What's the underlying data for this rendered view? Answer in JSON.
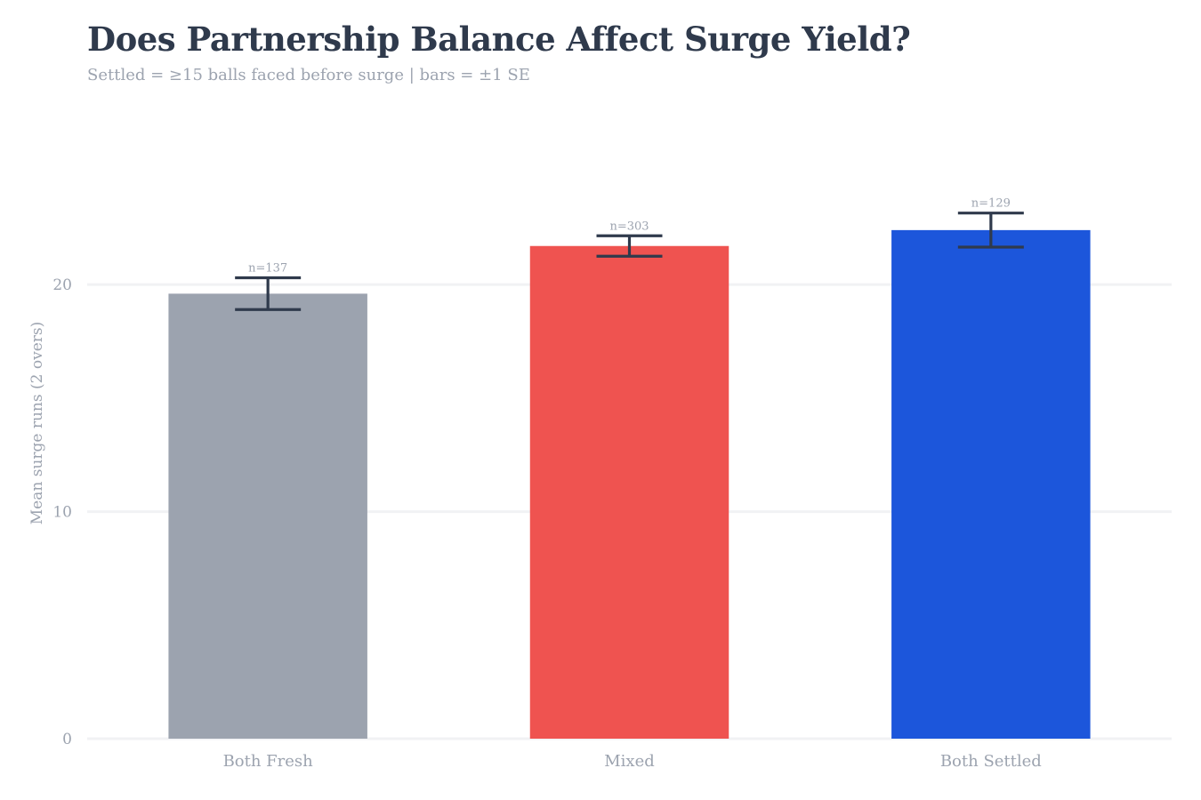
{
  "chart_data": {
    "type": "bar",
    "title": "Does Partnership Balance Affect Surge Yield?",
    "subtitle": "Settled = ≥15 balls faced before surge  |  bars = ±1 SE",
    "xlabel": "",
    "ylabel": "Mean surge runs (2 overs)",
    "categories": [
      "Both Fresh",
      "Mixed",
      "Both Settled"
    ],
    "values": [
      19.6,
      21.7,
      22.4
    ],
    "error_se": [
      0.7,
      0.45,
      0.75
    ],
    "sample_labels": [
      "n=137",
      "n=303",
      "n=129"
    ],
    "colors": [
      "#9ca3af",
      "#ef5350",
      "#1c56db"
    ],
    "ylim": [
      0,
      24
    ],
    "yticks": [
      0,
      10,
      20
    ],
    "grid": true,
    "legend": "none"
  }
}
